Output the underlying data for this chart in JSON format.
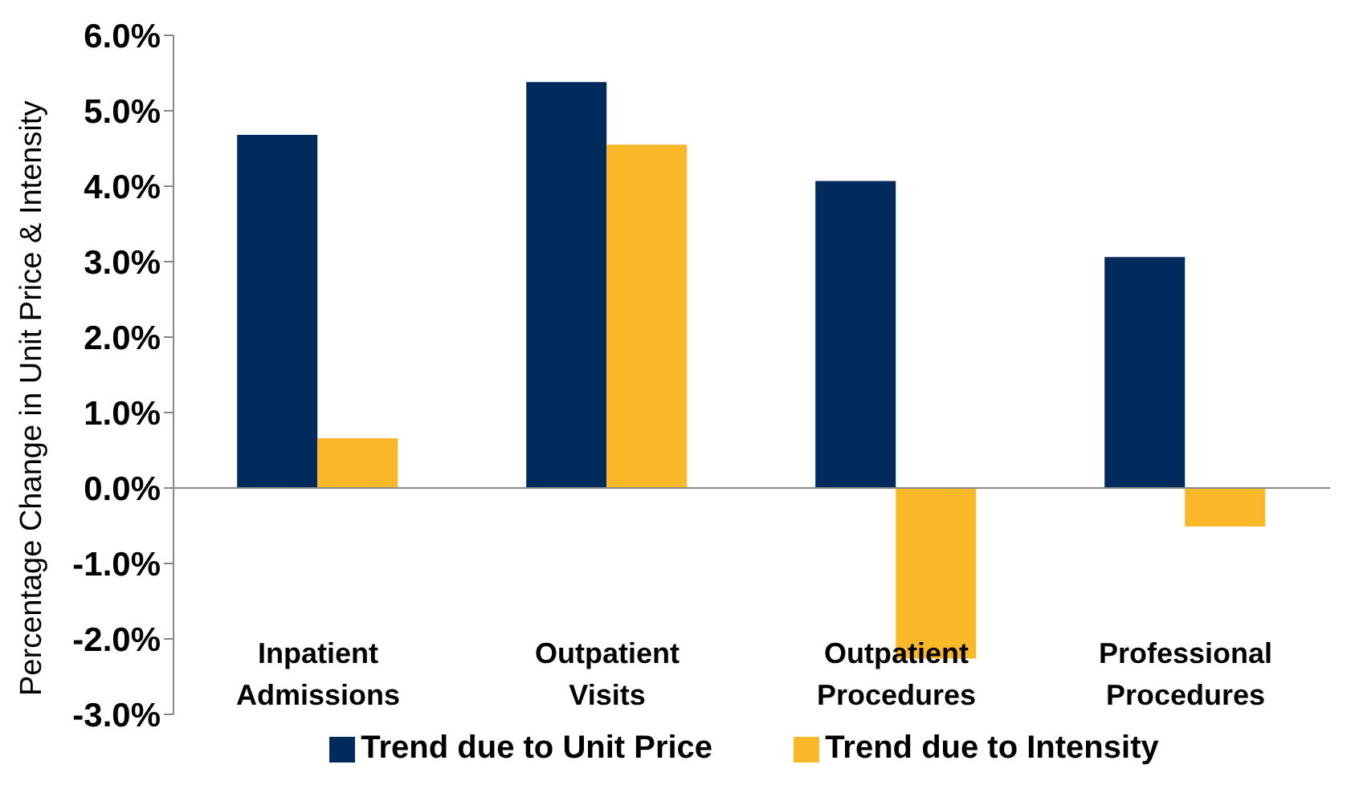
{
  "chart_data": {
    "type": "bar",
    "ylabel": "Percentage Change in Unit Price & Intensity",
    "categories": [
      "Inpatient\nAdmissions",
      "Outpatient\nVisits",
      "Outpatient\nProcedures",
      "Professional\nProcedures"
    ],
    "series": [
      {
        "name": "Trend due to Unit Price",
        "color": "#002b5c",
        "values": [
          4.68,
          5.38,
          4.07,
          3.06
        ]
      },
      {
        "name": "Trend due to Intensity",
        "color": "#fbb829",
        "values": [
          0.66,
          4.55,
          -2.26,
          -0.51
        ]
      }
    ],
    "ylim": [
      -3,
      6
    ],
    "yticks": [
      {
        "value": -3,
        "label": "-3.0%"
      },
      {
        "value": -2,
        "label": "-2.0%"
      },
      {
        "value": -1,
        "label": "-1.0%"
      },
      {
        "value": 0,
        "label": "0.0%"
      },
      {
        "value": 1,
        "label": "1.0%"
      },
      {
        "value": 2,
        "label": "2.0%"
      },
      {
        "value": 3,
        "label": "3.0%"
      },
      {
        "value": 4,
        "label": "4.0%"
      },
      {
        "value": 5,
        "label": "5.0%"
      },
      {
        "value": 6,
        "label": "6.0%"
      }
    ],
    "legend": "bottom"
  }
}
